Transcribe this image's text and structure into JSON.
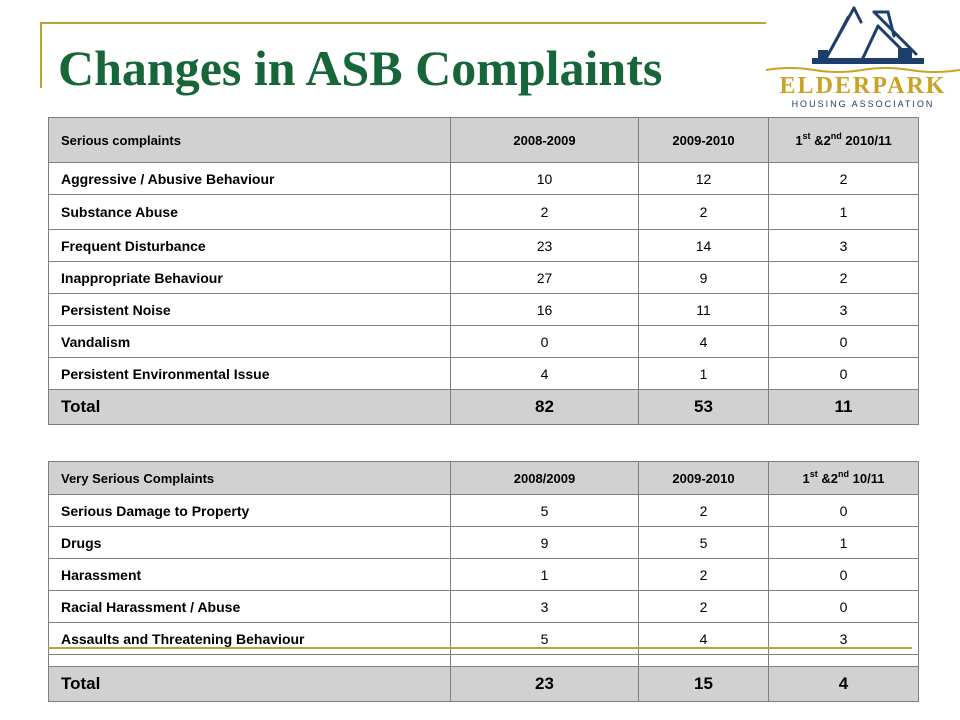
{
  "slide": {
    "title": "Changes in ASB Complaints"
  },
  "logo": {
    "name": "ELDERPARK",
    "subtitle": "HOUSING ASSOCIATION"
  },
  "colors": {
    "title": "#17663a",
    "accent_line": "#b8a33c",
    "header_fill": "#d1d1d1",
    "logo_gold": "#c9a227",
    "logo_navy": "#1d3f6b"
  },
  "table_serious": {
    "header": {
      "label": "Serious complaints",
      "col1": "2008-2009",
      "col2": "2009-2010",
      "col3_prefix": "1",
      "col3_sup1": "st",
      "col3_mid": " &2",
      "col3_sup2": "nd",
      "col3_suffix": " 2010/11"
    },
    "rows": [
      {
        "label": "Aggressive / Abusive Behaviour",
        "v1": "10",
        "v2": "12",
        "v3": "2"
      },
      {
        "label": "Substance Abuse",
        "v1": "2",
        "v2": "2",
        "v3": "1"
      },
      {
        "label": "Frequent Disturbance",
        "v1": "23",
        "v2": "14",
        "v3": "3"
      },
      {
        "label": "Inappropriate Behaviour",
        "v1": "27",
        "v2": "9",
        "v3": "2"
      },
      {
        "label": "Persistent Noise",
        "v1": "16",
        "v2": "11",
        "v3": "3"
      },
      {
        "label": "Vandalism",
        "v1": "0",
        "v2": "4",
        "v3": "0"
      },
      {
        "label": "Persistent Environmental Issue",
        "v1": "4",
        "v2": "1",
        "v3": "0"
      }
    ],
    "total": {
      "label": "Total",
      "v1": "82",
      "v2": "53",
      "v3": "11"
    }
  },
  "table_very_serious": {
    "header": {
      "label": "Very Serious Complaints",
      "col1": "2008/2009",
      "col2": "2009-2010",
      "col3_prefix": "1",
      "col3_sup1": "st",
      "col3_mid": " &2",
      "col3_sup2": "nd",
      "col3_suffix": " 10/11"
    },
    "rows": [
      {
        "label": "Serious Damage to Property",
        "v1": "5",
        "v2": "2",
        "v3": "0"
      },
      {
        "label": "Drugs",
        "v1": "9",
        "v2": "5",
        "v3": "1"
      },
      {
        "label": "Harassment",
        "v1": "1",
        "v2": "2",
        "v3": "0"
      },
      {
        "label": "Racial Harassment / Abuse",
        "v1": "3",
        "v2": "2",
        "v3": "0"
      },
      {
        "label": "Assaults and Threatening Behaviour",
        "v1": "5",
        "v2": "4",
        "v3": "3"
      }
    ],
    "total": {
      "label": "Total",
      "v1": "23",
      "v2": "15",
      "v3": "4"
    }
  }
}
